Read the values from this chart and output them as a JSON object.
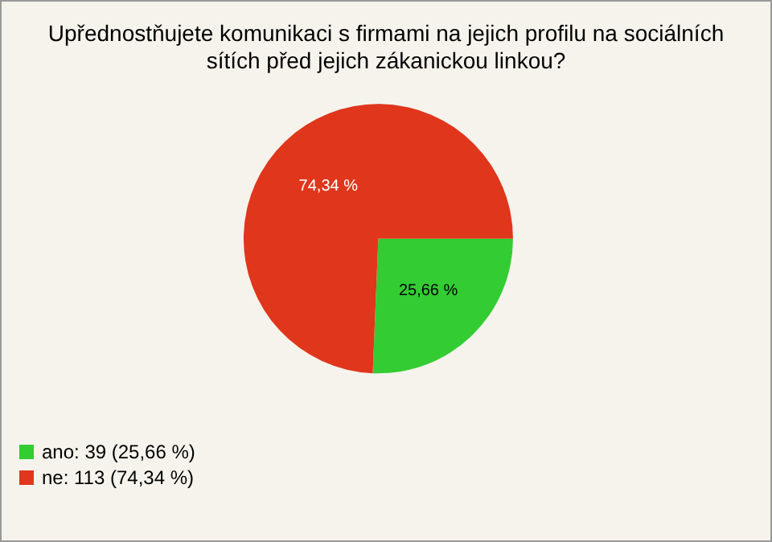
{
  "chart_data": {
    "type": "pie",
    "title": "Upřednostňujete komunikaci s firmami na jejich profilu na sociálních\nsítích před jejich zákanickou linkou?",
    "categories": [
      "ano: 39 (25,66 %)",
      "ne: 113 (74,34 %)"
    ],
    "values": [
      25.66,
      74.34
    ],
    "colors": [
      "#33cc33",
      "#e0361c"
    ],
    "value_labels": [
      "25,66 %",
      "74,34 %"
    ],
    "legend": "bottom left"
  }
}
